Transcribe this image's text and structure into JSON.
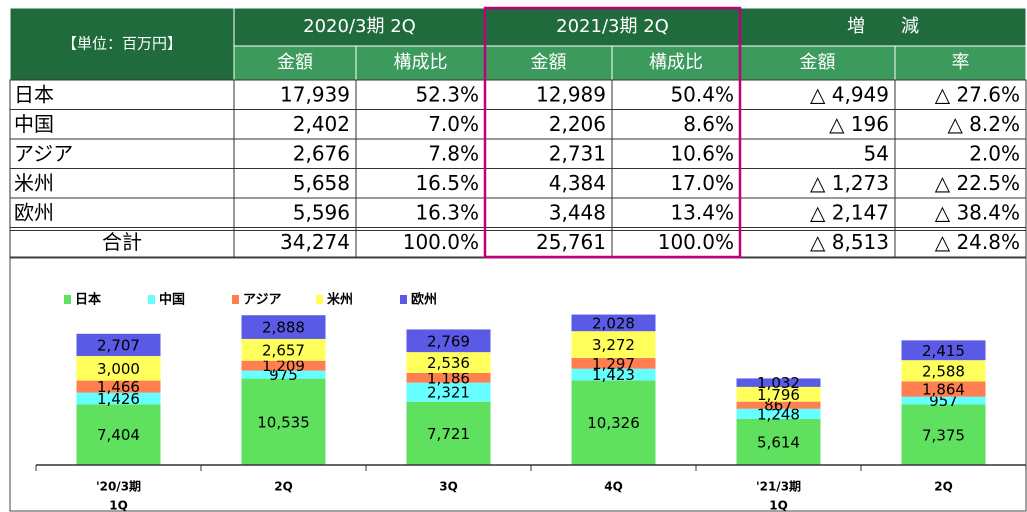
{
  "table": {
    "unit": "【単位：百万円】",
    "groups": [
      "2020/3期 2Q",
      "2021/3期 2Q",
      "増　　減"
    ],
    "subheaders": [
      "金額",
      "構成比",
      "金額",
      "構成比",
      "金額",
      "率"
    ],
    "rows": [
      [
        "日本",
        "17,939",
        "52.3%",
        "12,989",
        "50.4%",
        "△ 4,949",
        "△ 27.6%"
      ],
      [
        "中国",
        "2,402",
        "7.0%",
        "2,206",
        "8.6%",
        "△ 196",
        "△ 8.2%"
      ],
      [
        "アジア",
        "2,676",
        "7.8%",
        "2,731",
        "10.6%",
        "54",
        "2.0%"
      ],
      [
        "米州",
        "5,658",
        "16.5%",
        "4,384",
        "17.0%",
        "△ 1,273",
        "△ 22.5%"
      ],
      [
        "欧州",
        "5,596",
        "16.3%",
        "3,448",
        "13.4%",
        "△ 2,147",
        "△ 38.4%"
      ]
    ],
    "total": [
      "合計",
      "34,274",
      "100.0%",
      "25,761",
      "100.0%",
      "△ 8,513",
      "△ 24.8%"
    ]
  },
  "chart_data": {
    "type": "stacked_bar",
    "categories": [
      [
        "'20/3期",
        "1Q"
      ],
      [
        "2Q"
      ],
      [
        "3Q"
      ],
      [
        "4Q"
      ],
      [
        "'21/3期",
        "1Q"
      ],
      [
        "2Q"
      ]
    ],
    "ylim": [
      0,
      20000
    ],
    "series": [
      {
        "name": "日本",
        "color": "#5fe05f",
        "values": [
          7404,
          10535,
          7721,
          10326,
          5614,
          7375
        ],
        "value_labels": [
          "7,404",
          "10,535",
          "7,721",
          "10,326",
          "5,614",
          "7,375"
        ]
      },
      {
        "name": "中国",
        "color": "#66ffff",
        "values": [
          1426,
          975,
          2321,
          1423,
          1248,
          957
        ],
        "value_labels": [
          "1,426",
          "975",
          "2,321",
          "1,423",
          "1,248",
          "957"
        ]
      },
      {
        "name": "アジア",
        "color": "#ff7f50",
        "values": [
          1466,
          1209,
          1186,
          1297,
          867,
          1864
        ],
        "value_labels": [
          "1,466",
          "1,209",
          "1,186",
          "1,297",
          "867",
          "1,864"
        ]
      },
      {
        "name": "米州",
        "color": "#ffff5c",
        "values": [
          3000,
          2657,
          2536,
          3272,
          1796,
          2588
        ],
        "value_labels": [
          "3,000",
          "2,657",
          "2,536",
          "3,272",
          "1,796",
          "2,588"
        ]
      },
      {
        "name": "欧州",
        "color": "#5a5ae6",
        "values": [
          2707,
          2888,
          2769,
          2028,
          1032,
          2415
        ],
        "value_labels": [
          "2,707",
          "2,888",
          "2,769",
          "2,028",
          "1,032",
          "2,415"
        ]
      }
    ]
  }
}
